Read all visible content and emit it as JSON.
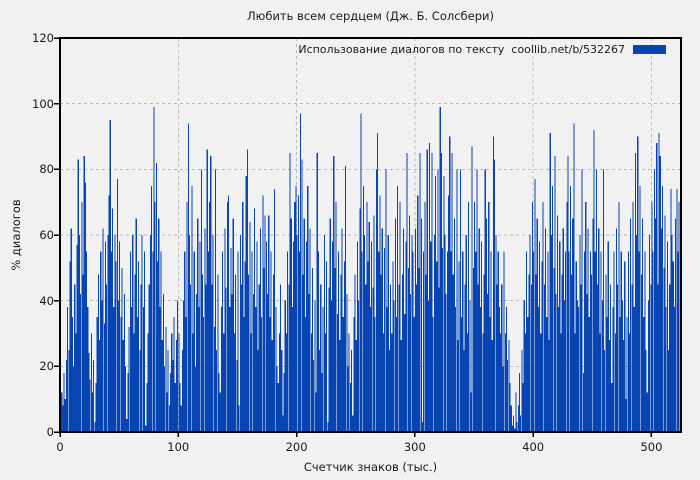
{
  "window": {
    "background": "#f1f1f1"
  },
  "chart_data": {
    "type": "bar",
    "style": "impulses",
    "title": "Любить всем сердцем (Дж. Б. Солсбери)",
    "legend": {
      "label": "Использование диалогов по тексту  coollib.net/b/532267",
      "position": "top-right"
    },
    "xlabel": "Счетчик знаков (тыс.)",
    "ylabel": "% диалогов",
    "xlim": [
      0,
      525
    ],
    "ylim": [
      0,
      120
    ],
    "xticks": [
      0,
      100,
      200,
      300,
      400,
      500
    ],
    "yticks": [
      0,
      20,
      40,
      60,
      80,
      100,
      120
    ],
    "grid": true,
    "legend_position": "top-right",
    "colors": {
      "bar": "#0845b2",
      "grid": "#b9b9b9",
      "axis": "#000000",
      "text": "#1a1a1a",
      "background": "#f1f1f1"
    },
    "x_start": 0,
    "x_step": 1,
    "values": [
      5,
      12,
      8,
      18,
      10,
      22,
      38,
      25,
      52,
      62,
      35,
      20,
      45,
      30,
      57,
      83,
      60,
      42,
      70,
      48,
      84,
      76,
      55,
      38,
      24,
      16,
      30,
      12,
      22,
      3,
      15,
      35,
      48,
      28,
      55,
      40,
      62,
      33,
      58,
      45,
      60,
      72,
      95,
      55,
      68,
      38,
      60,
      52,
      77,
      40,
      58,
      35,
      50,
      28,
      42,
      20,
      4,
      18,
      32,
      55,
      38,
      60,
      30,
      48,
      65,
      35,
      52,
      25,
      45,
      60,
      38,
      55,
      2,
      15,
      30,
      45,
      60,
      75,
      55,
      99,
      70,
      82,
      52,
      65,
      38,
      55,
      28,
      42,
      20,
      32,
      12,
      25,
      8,
      18,
      30,
      22,
      35,
      15,
      28,
      40,
      30,
      15,
      8,
      25,
      40,
      55,
      35,
      70,
      94,
      60,
      45,
      75,
      30,
      55,
      20,
      42,
      65,
      38,
      58,
      80,
      48,
      35,
      62,
      45,
      86,
      55,
      70,
      84,
      45,
      60,
      32,
      80,
      25,
      48,
      18,
      12,
      38,
      55,
      30,
      62,
      44,
      70,
      72,
      38,
      56,
      42,
      65,
      30,
      48,
      22,
      55,
      8,
      60,
      45,
      70,
      35,
      52,
      78,
      86,
      48,
      64,
      30,
      55,
      42,
      68,
      38,
      58,
      25,
      45,
      62,
      35,
      72,
      50,
      66,
      58,
      42,
      66,
      35,
      55,
      28,
      48,
      74,
      38,
      20,
      15,
      30,
      45,
      25,
      5,
      18,
      40,
      30,
      55,
      45,
      85,
      65,
      38,
      58,
      70,
      75,
      60,
      72,
      55,
      97,
      83,
      48,
      65,
      35,
      58,
      75,
      42,
      62,
      30,
      50,
      22,
      40,
      12,
      85,
      55,
      25,
      45,
      18,
      38,
      60,
      30,
      52,
      3,
      44,
      65,
      40,
      58,
      84,
      50,
      70,
      36,
      55,
      28,
      48,
      62,
      35,
      52,
      81,
      42,
      20,
      30,
      15,
      25,
      5,
      35,
      48,
      28,
      58,
      40,
      68,
      97,
      55,
      75,
      60,
      45,
      70,
      52,
      64,
      38,
      58,
      44,
      66,
      35,
      80,
      91,
      55,
      72,
      48,
      62,
      30,
      56,
      80,
      38,
      60,
      25,
      45,
      30,
      52,
      40,
      65,
      35,
      75,
      45,
      70,
      28,
      48,
      62,
      36,
      58,
      85,
      50,
      66,
      42,
      60,
      55,
      35,
      62,
      45,
      72,
      50,
      85,
      65,
      3,
      55,
      70,
      48,
      86,
      40,
      88,
      58,
      85,
      35,
      60,
      78,
      52,
      80,
      44,
      99,
      85,
      56,
      78,
      60,
      42,
      55,
      72,
      90,
      55,
      85,
      48,
      65,
      38,
      80,
      28,
      52,
      80,
      35,
      55,
      25,
      45,
      60,
      30,
      70,
      40,
      12,
      87,
      50,
      70,
      55,
      80,
      45,
      62,
      38,
      58,
      30,
      48,
      80,
      65,
      42,
      70,
      35,
      55,
      28,
      90,
      83,
      60,
      45,
      55,
      38,
      30,
      45,
      20,
      55,
      30,
      38,
      22,
      28,
      15,
      8,
      2,
      5,
      1,
      12,
      3,
      8,
      18,
      5,
      25,
      15,
      40,
      30,
      55,
      35,
      48,
      60,
      45,
      70,
      55,
      77,
      48,
      65,
      38,
      58,
      30,
      52,
      70,
      45,
      62,
      35,
      55,
      28,
      91,
      60,
      75,
      50,
      84,
      42,
      66,
      38,
      58,
      30,
      48,
      62,
      40,
      55,
      70,
      84,
      55,
      75,
      48,
      65,
      94,
      30,
      52,
      40,
      38,
      60,
      45,
      80,
      18,
      55,
      70,
      42,
      62,
      35,
      55,
      48,
      65,
      92,
      55,
      80,
      45,
      62,
      30,
      55,
      40,
      80,
      25,
      48,
      35,
      58,
      28,
      45,
      15,
      38,
      55,
      30,
      62,
      45,
      70,
      35,
      55,
      40,
      28,
      52,
      10,
      35,
      55,
      30,
      65,
      45,
      70,
      38,
      85,
      60,
      90,
      55,
      75,
      48,
      65,
      35,
      55,
      25,
      12,
      40,
      60,
      45,
      70,
      55,
      80,
      65,
      88,
      45,
      91,
      84,
      62,
      75,
      50,
      66,
      38,
      58,
      25,
      45,
      74,
      60,
      52,
      38,
      65,
      74,
      55,
      70,
      52
    ]
  }
}
